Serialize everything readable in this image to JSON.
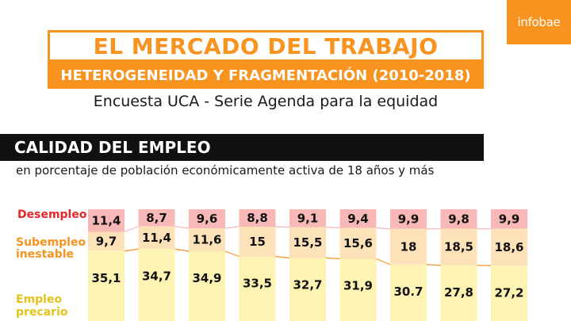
{
  "brand": {
    "logo_text": "infobae"
  },
  "header": {
    "title": "EL MERCADO DEL TRABAJO",
    "subtitle": "HETEROGENEIDAD Y FRAGMENTACIÓN (2010-2018)",
    "source": "Encuesta UCA - Serie Agenda para la equidad"
  },
  "section": {
    "title": "CALIDAD DEL EMPLEO",
    "subtitle": "en porcentaje de población económicamente activa de 18 años y más"
  },
  "colors": {
    "accent": "#f7931e",
    "desempleo_fill": "#f8b8b8",
    "desempleo_label": "#e8262b",
    "subempleo_fill": "#fde1b8",
    "subempleo_label": "#f7931e",
    "precario_fill": "#fdf3b3",
    "precario_label": "#e6c21a"
  },
  "chart_data": {
    "type": "bar",
    "stacked": true,
    "categories": [
      "",
      "",
      "",
      "",
      "",
      "",
      "",
      "",
      ""
    ],
    "series": [
      {
        "name": "Desempleo",
        "values": [
          11.4,
          8.7,
          9.6,
          8.8,
          9.1,
          9.4,
          9.9,
          9.8,
          9.9
        ],
        "labels": [
          "11,4",
          "8,7",
          "9,6",
          "8,8",
          "9,1",
          "9,4",
          "9,9",
          "9,8",
          "9,9"
        ]
      },
      {
        "name": "Subempleo inestable",
        "values": [
          9.7,
          11.4,
          11.6,
          15,
          15.5,
          15.6,
          18,
          18.5,
          18.6
        ],
        "labels": [
          "9,7",
          "11,4",
          "11,6",
          "15",
          "15,5",
          "15,6",
          "18",
          "18,5",
          "18,6"
        ]
      },
      {
        "name": "Empleo precario",
        "values": [
          35.1,
          34.7,
          34.9,
          33.5,
          32.7,
          31.9,
          30.7,
          27.8,
          27.2
        ],
        "labels": [
          "35,1",
          "34,7",
          "34,9",
          "33,5",
          "32,7",
          "31,9",
          "30.7",
          "27,8",
          "27,2"
        ]
      }
    ],
    "legend_lines": [
      [
        "Desempleo"
      ],
      [
        "Subempleo",
        "inestable"
      ],
      [
        "Empleo",
        "precario"
      ]
    ]
  }
}
